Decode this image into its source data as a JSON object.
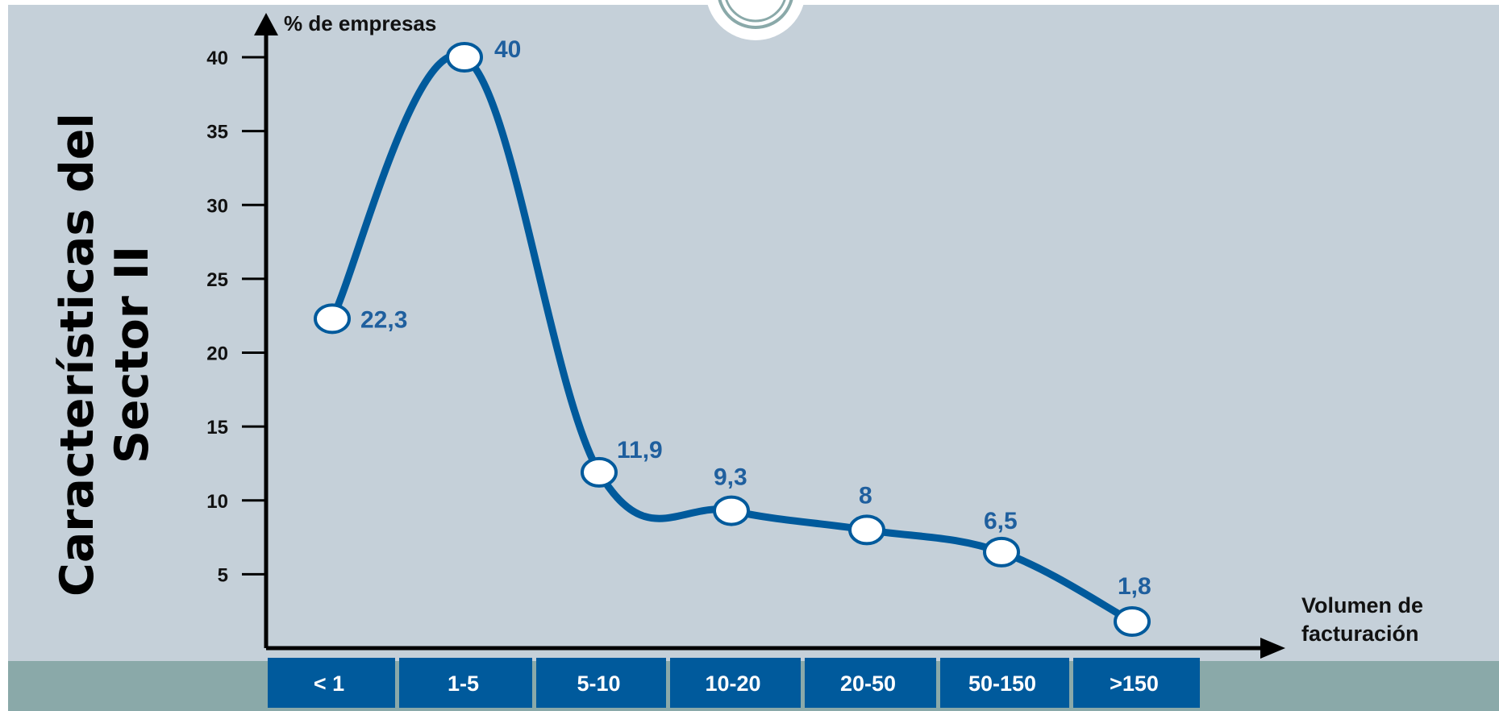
{
  "slide": {
    "title_line1": "Características del",
    "title_line2": "Sector II"
  },
  "chart_data": {
    "type": "line",
    "title": "",
    "ylabel": "% de empresas",
    "xlabel": "Volumen de facturación",
    "categories": [
      "< 1",
      "1-5",
      "5-10",
      "10-20",
      "20-50",
      "50-150",
      ">150"
    ],
    "values": [
      22.3,
      40,
      11.9,
      9.3,
      8,
      6.5,
      1.8
    ],
    "data_labels": [
      "22,3",
      "40",
      "11,9",
      "9,3",
      "8",
      "6,5",
      "1,8"
    ],
    "yticks": [
      5,
      10,
      15,
      20,
      25,
      30,
      35,
      40
    ],
    "ylim": [
      0,
      40
    ],
    "grid": false,
    "legend": "none",
    "colors": {
      "line": "#005a9c",
      "marker_fill": "#ffffff",
      "label": "#1f5f9e",
      "category_box": "#005a9c",
      "category_text": "#ffffff",
      "background": "#c5d0d9",
      "band": "#8aa9a9"
    }
  }
}
